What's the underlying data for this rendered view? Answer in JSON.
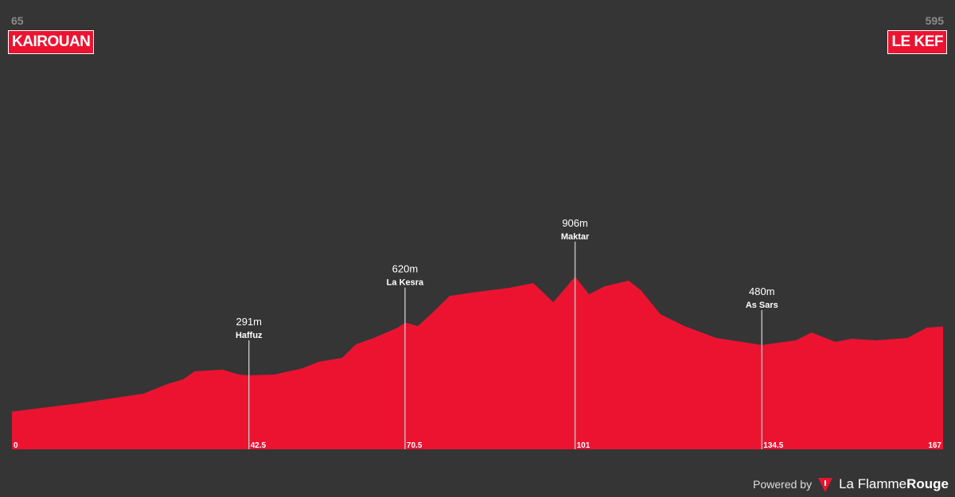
{
  "chart_data": {
    "type": "area",
    "start": {
      "elevation": 65,
      "name": "KAIROUAN"
    },
    "end": {
      "elevation": 595,
      "name": "LE KEF"
    },
    "x": [
      0,
      12.1,
      23.6,
      27.8,
      30.7,
      32.8,
      37.8,
      40.7,
      42.5,
      47.1,
      52.1,
      55.0,
      59.2,
      61.7,
      64.9,
      69.2,
      70.5,
      72.8,
      75.6,
      78.5,
      83.5,
      89.2,
      93.5,
      97.1,
      101,
      103.5,
      106.3,
      110.6,
      112.8,
      116.3,
      120.6,
      126.3,
      134.5,
      140.6,
      143.4,
      147.7,
      150.6,
      154.9,
      160.6,
      164.1,
      167
    ],
    "values": [
      65,
      117,
      177,
      236,
      266,
      316,
      326,
      296,
      291,
      296,
      335,
      375,
      400,
      484,
      524,
      588,
      620,
      598,
      687,
      786,
      811,
      836,
      866,
      747,
      906,
      796,
      846,
      881,
      821,
      672,
      598,
      524,
      480,
      509,
      558,
      499,
      519,
      509,
      524,
      588,
      595
    ],
    "color": "#ec1331",
    "xlim": [
      0,
      167
    ],
    "ylim": [
      -170,
      2630
    ],
    "xticks": [
      0,
      42.5,
      70.5,
      101,
      134.5,
      167
    ],
    "markers": [
      {
        "x": 42.5,
        "elevation": 291,
        "elevation_label": "291m",
        "name": "Haffuz"
      },
      {
        "x": 70.5,
        "elevation": 620,
        "elevation_label": "620m",
        "name": "La Kesra"
      },
      {
        "x": 101,
        "elevation": 906,
        "elevation_label": "906m",
        "name": "Maktar"
      },
      {
        "x": 134.5,
        "elevation": 480,
        "elevation_label": "480m",
        "name": "As Sars"
      }
    ]
  },
  "footer": {
    "powered_by": "Powered by",
    "brand_a": "La Flamme",
    "brand_b": "Rouge"
  }
}
